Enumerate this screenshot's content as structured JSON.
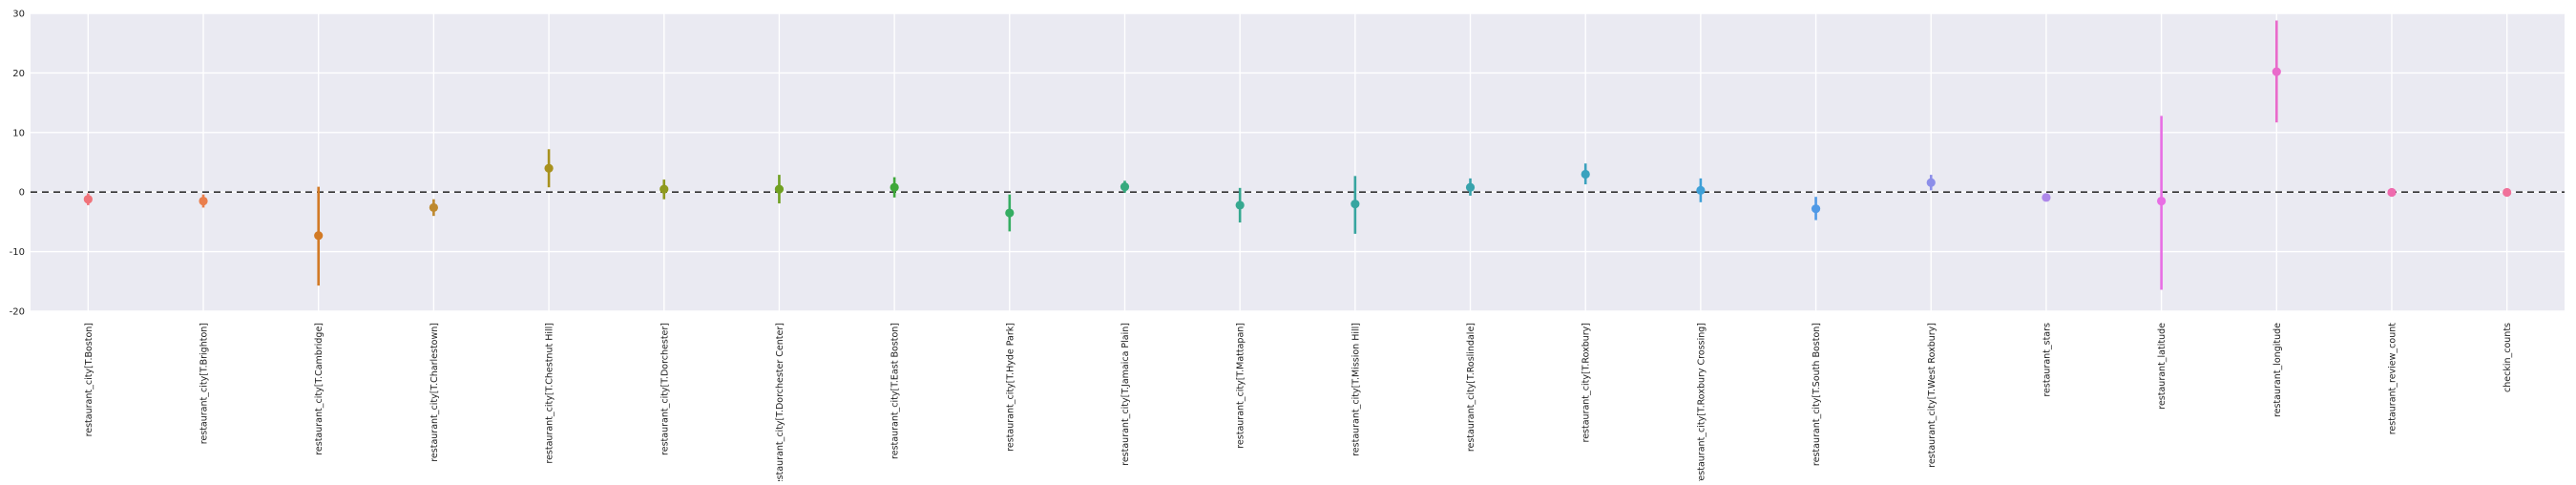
{
  "chart_data": {
    "type": "scatter",
    "subtype": "point-range",
    "title": "",
    "xlabel": "",
    "ylabel": "",
    "categories": [
      "restaurant_city[T.Boston]",
      "restaurant_city[T.Brighton]",
      "restaurant_city[T.Cambridge]",
      "restaurant_city[T.Charlestown]",
      "restaurant_city[T.Chestnut Hill]",
      "restaurant_city[T.Dorchester]",
      "restaurant_city[T.Dorchester Center]",
      "restaurant_city[T.East Boston]",
      "restaurant_city[T.Hyde Park]",
      "restaurant_city[T.Jamaica Plain]",
      "restaurant_city[T.Mattapan]",
      "restaurant_city[T.Mission Hill]",
      "restaurant_city[T.Roslindale]",
      "restaurant_city[T.Roxbury]",
      "restaurant_city[T.Roxbury Crossing]",
      "restaurant_city[T.South Boston]",
      "restaurant_city[T.West Roxbury]",
      "restaurant_stars",
      "restaurant_latitude",
      "restaurant_longitude",
      "restaurant_review_count",
      "checkin_counts"
    ],
    "values": [
      -1.2,
      -1.5,
      -7.3,
      -2.6,
      4.0,
      0.5,
      0.5,
      0.8,
      -3.5,
      0.9,
      -2.2,
      -2.0,
      0.8,
      3.0,
      0.3,
      -2.8,
      1.6,
      -0.9,
      -1.5,
      20.2,
      -0.05,
      -0.05
    ],
    "lower": [
      -2.2,
      -2.6,
      -15.7,
      -4.0,
      0.8,
      -1.2,
      -1.9,
      -0.9,
      -6.6,
      -0.1,
      -5.1,
      -7.0,
      -0.6,
      1.3,
      -1.7,
      -4.7,
      0.3,
      -1.5,
      -16.4,
      11.7,
      -0.25,
      -0.25
    ],
    "upper": [
      -0.2,
      -0.4,
      0.9,
      -1.2,
      7.2,
      2.1,
      2.9,
      2.5,
      -0.4,
      1.9,
      0.7,
      2.7,
      2.3,
      4.8,
      2.3,
      -0.8,
      2.9,
      -0.3,
      12.8,
      28.8,
      0.15,
      0.15
    ],
    "colors": [
      "#f0727a",
      "#ea7e4c",
      "#d27a26",
      "#be892e",
      "#a8911d",
      "#8f9a1f",
      "#70a021",
      "#3fa83a",
      "#35ad62",
      "#35aa7e",
      "#36a890",
      "#37a5a0",
      "#38a3ac",
      "#3aa2be",
      "#3fa0d7",
      "#4f99e6",
      "#8c8ee9",
      "#ae88ea",
      "#e86ee4",
      "#e96bcb",
      "#ef6bae",
      "#f0719a"
    ],
    "ylim": [
      -20,
      30
    ],
    "yticks": [
      -20,
      -10,
      0,
      10,
      20,
      30
    ],
    "reference_line": {
      "y": 0,
      "style": "dashed",
      "color": "#333333"
    },
    "grid": true,
    "legend": "none",
    "background": "#eaeaf2"
  }
}
